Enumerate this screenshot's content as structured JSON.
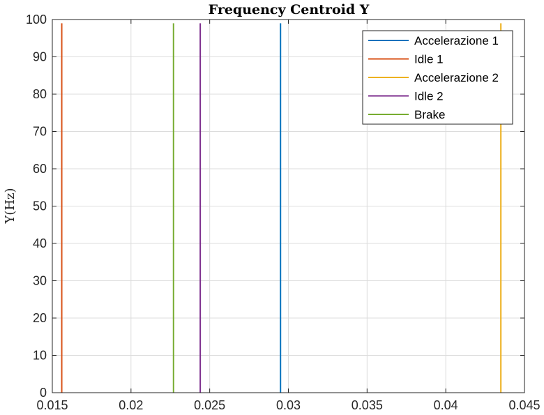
{
  "chart_data": {
    "type": "line",
    "title": "Frequency Centroid Y",
    "xlabel": "",
    "ylabel": "Y(Hz)",
    "xlim": [
      0.015,
      0.045
    ],
    "ylim": [
      0,
      100
    ],
    "xticks": [
      0.015,
      0.02,
      0.025,
      0.03,
      0.035,
      0.04,
      0.045
    ],
    "xtick_labels": [
      "0.015",
      "0.02",
      "0.025",
      "0.03",
      "0.035",
      "0.04",
      "0.045"
    ],
    "yticks": [
      0,
      10,
      20,
      30,
      40,
      50,
      60,
      70,
      80,
      90,
      100
    ],
    "ytick_labels": [
      "0",
      "10",
      "20",
      "30",
      "40",
      "50",
      "60",
      "70",
      "80",
      "90",
      "100"
    ],
    "grid": true,
    "legend_position": "top-right",
    "series": [
      {
        "name": "Accelerazione 1",
        "color": "#0072BD",
        "x": [
          0.0295,
          0.0295
        ],
        "y": [
          0,
          99
        ]
      },
      {
        "name": "Idle 1",
        "color": "#D95319",
        "x": [
          0.0156,
          0.0156
        ],
        "y": [
          0,
          99
        ]
      },
      {
        "name": "Accelerazione 2",
        "color": "#EDB120",
        "x": [
          0.0435,
          0.0435
        ],
        "y": [
          0,
          99
        ]
      },
      {
        "name": "Idle 2",
        "color": "#7E2F8E",
        "x": [
          0.0244,
          0.0244
        ],
        "y": [
          0,
          99
        ]
      },
      {
        "name": "Brake",
        "color": "#77AC30",
        "x": [
          0.0227,
          0.0227
        ],
        "y": [
          0,
          99
        ]
      }
    ]
  }
}
